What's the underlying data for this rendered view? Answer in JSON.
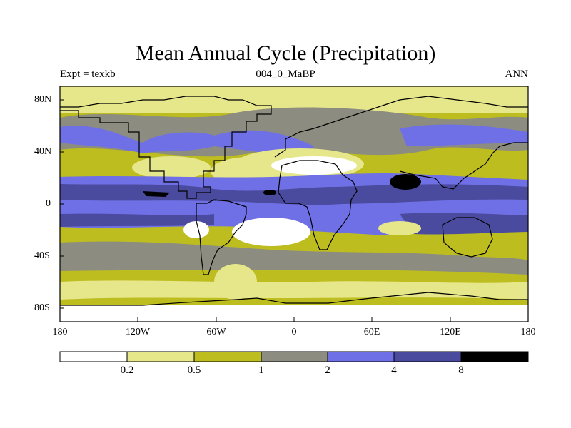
{
  "title": "Mean Annual Cycle (Precipitation)",
  "subtitle_left": "Expt = texkb",
  "subtitle_center": "004_0_MaBP",
  "subtitle_right": "ANN",
  "lat_labels": [
    "80N",
    "40N",
    "0",
    "40S",
    "80S"
  ],
  "lon_labels": [
    "180",
    "120W",
    "60W",
    "0",
    "60E",
    "120E",
    "180"
  ],
  "colorbar": {
    "labels": [
      "0.2",
      "0.5",
      "1",
      "2",
      "4",
      "8"
    ],
    "colors": [
      "#ffffff",
      "#e6e68a",
      "#bdbd1f",
      "#8c8c80",
      "#7070e6",
      "#4a4a9e",
      "#000000"
    ]
  }
}
